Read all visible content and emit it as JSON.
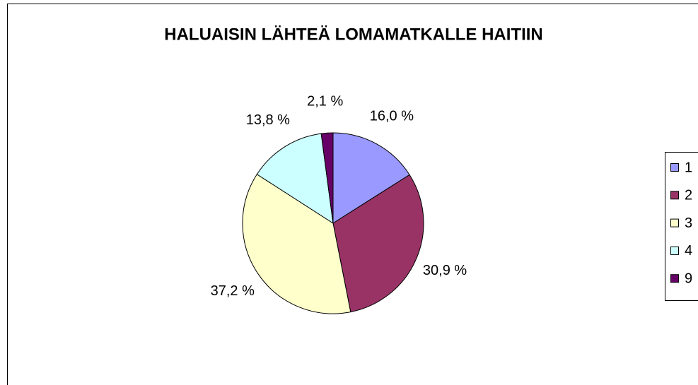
{
  "chart_data": {
    "type": "pie",
    "title": "HALUAISIN LÄHTEÄ LOMAMATKALLE HAITIIN",
    "categories": [
      "1",
      "2",
      "3",
      "4",
      "9"
    ],
    "values": [
      16.0,
      30.9,
      37.2,
      13.8,
      2.1
    ],
    "value_labels": [
      "16,0 %",
      "30,9 %",
      "37,2 %",
      "13,8 %",
      "2,1 %"
    ],
    "colors": [
      "#9999ff",
      "#993366",
      "#ffffcc",
      "#ccffff",
      "#660066"
    ],
    "legend": "right"
  }
}
